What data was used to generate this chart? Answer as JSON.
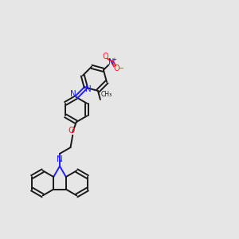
{
  "bg_color": "#e6e6e6",
  "bond_color": "#1a1a1a",
  "nitrogen_color": "#2020ff",
  "oxygen_color": "#ff2020",
  "figsize": [
    3.0,
    3.0
  ],
  "dpi": 100,
  "xlim": [
    0,
    10
  ],
  "ylim": [
    0,
    10
  ]
}
